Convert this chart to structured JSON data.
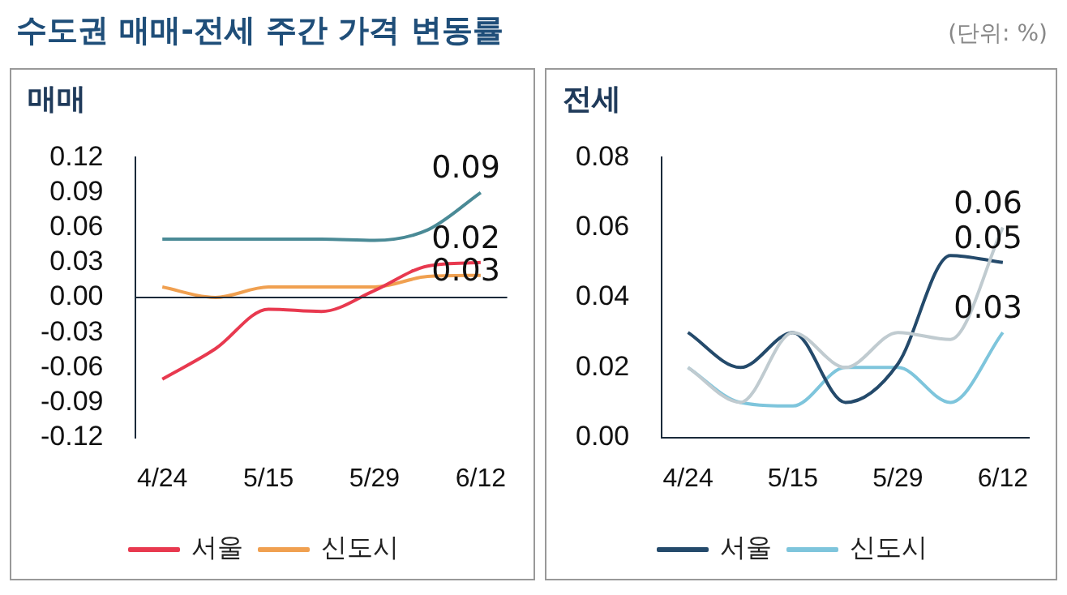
{
  "chart_data": [
    {
      "type": "line",
      "title": "수도권 매매-전세 주간 가격 변동률",
      "subtitle": "매매",
      "categories": [
        "4/24",
        null,
        "5/15",
        null,
        "5/29",
        null,
        "6/12"
      ],
      "series": [
        {
          "color": "#4a8a96",
          "values": [
            0.05,
            0.05,
            0.05,
            0.05,
            0.049,
            0.058,
            0.09
          ]
        },
        {
          "name": "서울",
          "color": "#e8394f",
          "values": [
            -0.07,
            -0.044,
            -0.01,
            -0.012,
            0.006,
            0.027,
            0.03
          ]
        },
        {
          "name": "신도시",
          "color": "#f0a050",
          "values": [
            0.009,
            0,
            0.009,
            0.009,
            0.009,
            0.018,
            0.019
          ]
        }
      ],
      "ylim": [
        -0.12,
        0.12
      ],
      "yticks": [
        0.12,
        0.09,
        0.06,
        0.03,
        {
          "value": 0,
          "label": "0.00"
        },
        -0.03,
        -0.06,
        -0.09,
        -0.12
      ],
      "ref_lines": [
        {
          "axis": "y",
          "value": 0,
          "color": "#1a2a3a"
        }
      ],
      "annotations": [
        "0.09",
        "0.02",
        "0.03"
      ],
      "grid": false,
      "legend": "bottom",
      "marker": "none",
      "line_style": "solid"
    },
    {
      "type": "line",
      "title": "(단위: %)",
      "subtitle": "전세",
      "categories": [
        "4/24",
        null,
        "5/15",
        null,
        "5/29",
        null,
        "6/12"
      ],
      "series": [
        {
          "color": "#c0cbd0",
          "values": [
            0.02,
            0.01,
            0.03,
            0.02,
            0.03,
            0.028,
            0.06
          ]
        },
        {
          "name": "서울",
          "color": "#244a6b",
          "values": [
            0.03,
            0.02,
            0.03,
            0.01,
            0.021,
            0.052,
            0.05
          ]
        },
        {
          "name": "신도시",
          "color": "#7ec5dc",
          "values": [
            0.02,
            0.01,
            0.009,
            0.02,
            0.02,
            0.01,
            0.03
          ]
        }
      ],
      "ylim": [
        0,
        0.08
      ],
      "yticks": [
        {
          "value": 0,
          "label": "0.00"
        },
        0.02,
        0.04,
        0.06,
        0.08
      ],
      "annotations": [
        "0.06",
        "0.05",
        "0.03"
      ],
      "grid": false,
      "legend": "bottom",
      "marker": "none",
      "line_style": "solid"
    }
  ]
}
